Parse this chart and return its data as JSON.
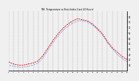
{
  "title": "Mil. Temperature vs Heat Index (Last 24 Hours)",
  "background_color": "#f0f0f0",
  "plot_bg_color": "#f0f0f0",
  "grid_color": "#888888",
  "line1_color": "#dd0000",
  "line2_color": "#0000cc",
  "ylim": [
    30,
    85
  ],
  "xlim": [
    0,
    24
  ],
  "ytick_values": [
    35,
    40,
    45,
    50,
    55,
    60,
    65,
    70,
    75,
    80
  ],
  "ytick_labels": [
    "35",
    "40",
    "45",
    "50",
    "55",
    "60",
    "65",
    "70",
    "75",
    "80"
  ],
  "xtick_values": [
    0,
    1,
    2,
    3,
    4,
    5,
    6,
    7,
    8,
    9,
    10,
    11,
    12,
    13,
    14,
    15,
    16,
    17,
    18,
    19,
    20,
    21,
    22,
    23,
    24
  ],
  "x": [
    0,
    1,
    2,
    3,
    4,
    5,
    6,
    7,
    8,
    9,
    10,
    11,
    12,
    13,
    14,
    15,
    16,
    17,
    18,
    19,
    20,
    21,
    22,
    23,
    24
  ],
  "temp": [
    38,
    36,
    35,
    35,
    36,
    37,
    39,
    44,
    51,
    58,
    64,
    69,
    73,
    76,
    78,
    77,
    76,
    73,
    69,
    64,
    57,
    51,
    47,
    43,
    40
  ],
  "heat_index": [
    35,
    34,
    33,
    33,
    34,
    35,
    37,
    42,
    49,
    56,
    62,
    67,
    71,
    74,
    76,
    76,
    75,
    72,
    68,
    63,
    56,
    50,
    45,
    41,
    38
  ]
}
